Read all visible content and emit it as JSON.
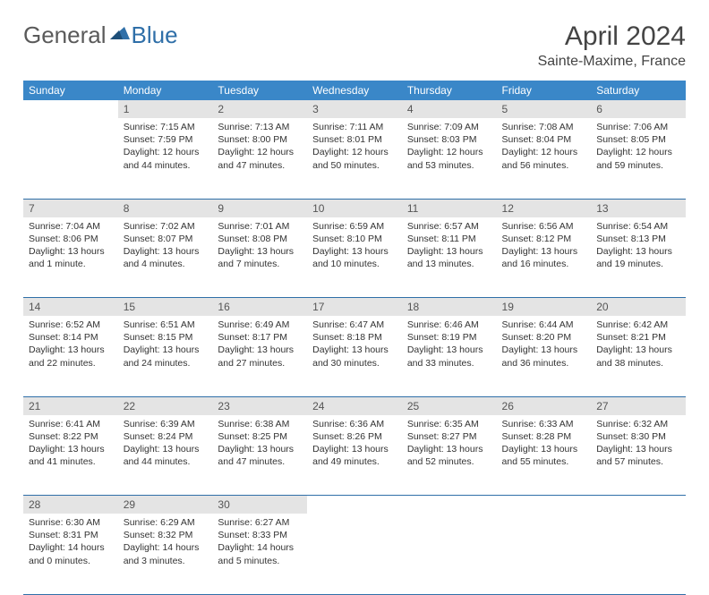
{
  "logo": {
    "part1": "General",
    "part2": "Blue"
  },
  "title": {
    "month": "April 2024",
    "location": "Sainte-Maxime, France"
  },
  "colors": {
    "header_bg": "#3a87c8",
    "header_text": "#ffffff",
    "daynum_bg": "#e4e4e4",
    "border": "#2f6fa8",
    "logo_gray": "#5a5a5a",
    "logo_blue": "#2f6fa8"
  },
  "weekdays": [
    "Sunday",
    "Monday",
    "Tuesday",
    "Wednesday",
    "Thursday",
    "Friday",
    "Saturday"
  ],
  "weeks": [
    {
      "nums": [
        "",
        "1",
        "2",
        "3",
        "4",
        "5",
        "6"
      ],
      "cells": [
        null,
        {
          "sunrise": "Sunrise: 7:15 AM",
          "sunset": "Sunset: 7:59 PM",
          "day1": "Daylight: 12 hours",
          "day2": "and 44 minutes."
        },
        {
          "sunrise": "Sunrise: 7:13 AM",
          "sunset": "Sunset: 8:00 PM",
          "day1": "Daylight: 12 hours",
          "day2": "and 47 minutes."
        },
        {
          "sunrise": "Sunrise: 7:11 AM",
          "sunset": "Sunset: 8:01 PM",
          "day1": "Daylight: 12 hours",
          "day2": "and 50 minutes."
        },
        {
          "sunrise": "Sunrise: 7:09 AM",
          "sunset": "Sunset: 8:03 PM",
          "day1": "Daylight: 12 hours",
          "day2": "and 53 minutes."
        },
        {
          "sunrise": "Sunrise: 7:08 AM",
          "sunset": "Sunset: 8:04 PM",
          "day1": "Daylight: 12 hours",
          "day2": "and 56 minutes."
        },
        {
          "sunrise": "Sunrise: 7:06 AM",
          "sunset": "Sunset: 8:05 PM",
          "day1": "Daylight: 12 hours",
          "day2": "and 59 minutes."
        }
      ]
    },
    {
      "nums": [
        "7",
        "8",
        "9",
        "10",
        "11",
        "12",
        "13"
      ],
      "cells": [
        {
          "sunrise": "Sunrise: 7:04 AM",
          "sunset": "Sunset: 8:06 PM",
          "day1": "Daylight: 13 hours",
          "day2": "and 1 minute."
        },
        {
          "sunrise": "Sunrise: 7:02 AM",
          "sunset": "Sunset: 8:07 PM",
          "day1": "Daylight: 13 hours",
          "day2": "and 4 minutes."
        },
        {
          "sunrise": "Sunrise: 7:01 AM",
          "sunset": "Sunset: 8:08 PM",
          "day1": "Daylight: 13 hours",
          "day2": "and 7 minutes."
        },
        {
          "sunrise": "Sunrise: 6:59 AM",
          "sunset": "Sunset: 8:10 PM",
          "day1": "Daylight: 13 hours",
          "day2": "and 10 minutes."
        },
        {
          "sunrise": "Sunrise: 6:57 AM",
          "sunset": "Sunset: 8:11 PM",
          "day1": "Daylight: 13 hours",
          "day2": "and 13 minutes."
        },
        {
          "sunrise": "Sunrise: 6:56 AM",
          "sunset": "Sunset: 8:12 PM",
          "day1": "Daylight: 13 hours",
          "day2": "and 16 minutes."
        },
        {
          "sunrise": "Sunrise: 6:54 AM",
          "sunset": "Sunset: 8:13 PM",
          "day1": "Daylight: 13 hours",
          "day2": "and 19 minutes."
        }
      ]
    },
    {
      "nums": [
        "14",
        "15",
        "16",
        "17",
        "18",
        "19",
        "20"
      ],
      "cells": [
        {
          "sunrise": "Sunrise: 6:52 AM",
          "sunset": "Sunset: 8:14 PM",
          "day1": "Daylight: 13 hours",
          "day2": "and 22 minutes."
        },
        {
          "sunrise": "Sunrise: 6:51 AM",
          "sunset": "Sunset: 8:15 PM",
          "day1": "Daylight: 13 hours",
          "day2": "and 24 minutes."
        },
        {
          "sunrise": "Sunrise: 6:49 AM",
          "sunset": "Sunset: 8:17 PM",
          "day1": "Daylight: 13 hours",
          "day2": "and 27 minutes."
        },
        {
          "sunrise": "Sunrise: 6:47 AM",
          "sunset": "Sunset: 8:18 PM",
          "day1": "Daylight: 13 hours",
          "day2": "and 30 minutes."
        },
        {
          "sunrise": "Sunrise: 6:46 AM",
          "sunset": "Sunset: 8:19 PM",
          "day1": "Daylight: 13 hours",
          "day2": "and 33 minutes."
        },
        {
          "sunrise": "Sunrise: 6:44 AM",
          "sunset": "Sunset: 8:20 PM",
          "day1": "Daylight: 13 hours",
          "day2": "and 36 minutes."
        },
        {
          "sunrise": "Sunrise: 6:42 AM",
          "sunset": "Sunset: 8:21 PM",
          "day1": "Daylight: 13 hours",
          "day2": "and 38 minutes."
        }
      ]
    },
    {
      "nums": [
        "21",
        "22",
        "23",
        "24",
        "25",
        "26",
        "27"
      ],
      "cells": [
        {
          "sunrise": "Sunrise: 6:41 AM",
          "sunset": "Sunset: 8:22 PM",
          "day1": "Daylight: 13 hours",
          "day2": "and 41 minutes."
        },
        {
          "sunrise": "Sunrise: 6:39 AM",
          "sunset": "Sunset: 8:24 PM",
          "day1": "Daylight: 13 hours",
          "day2": "and 44 minutes."
        },
        {
          "sunrise": "Sunrise: 6:38 AM",
          "sunset": "Sunset: 8:25 PM",
          "day1": "Daylight: 13 hours",
          "day2": "and 47 minutes."
        },
        {
          "sunrise": "Sunrise: 6:36 AM",
          "sunset": "Sunset: 8:26 PM",
          "day1": "Daylight: 13 hours",
          "day2": "and 49 minutes."
        },
        {
          "sunrise": "Sunrise: 6:35 AM",
          "sunset": "Sunset: 8:27 PM",
          "day1": "Daylight: 13 hours",
          "day2": "and 52 minutes."
        },
        {
          "sunrise": "Sunrise: 6:33 AM",
          "sunset": "Sunset: 8:28 PM",
          "day1": "Daylight: 13 hours",
          "day2": "and 55 minutes."
        },
        {
          "sunrise": "Sunrise: 6:32 AM",
          "sunset": "Sunset: 8:30 PM",
          "day1": "Daylight: 13 hours",
          "day2": "and 57 minutes."
        }
      ]
    },
    {
      "nums": [
        "28",
        "29",
        "30",
        "",
        "",
        "",
        ""
      ],
      "cells": [
        {
          "sunrise": "Sunrise: 6:30 AM",
          "sunset": "Sunset: 8:31 PM",
          "day1": "Daylight: 14 hours",
          "day2": "and 0 minutes."
        },
        {
          "sunrise": "Sunrise: 6:29 AM",
          "sunset": "Sunset: 8:32 PM",
          "day1": "Daylight: 14 hours",
          "day2": "and 3 minutes."
        },
        {
          "sunrise": "Sunrise: 6:27 AM",
          "sunset": "Sunset: 8:33 PM",
          "day1": "Daylight: 14 hours",
          "day2": "and 5 minutes."
        },
        null,
        null,
        null,
        null
      ]
    }
  ]
}
